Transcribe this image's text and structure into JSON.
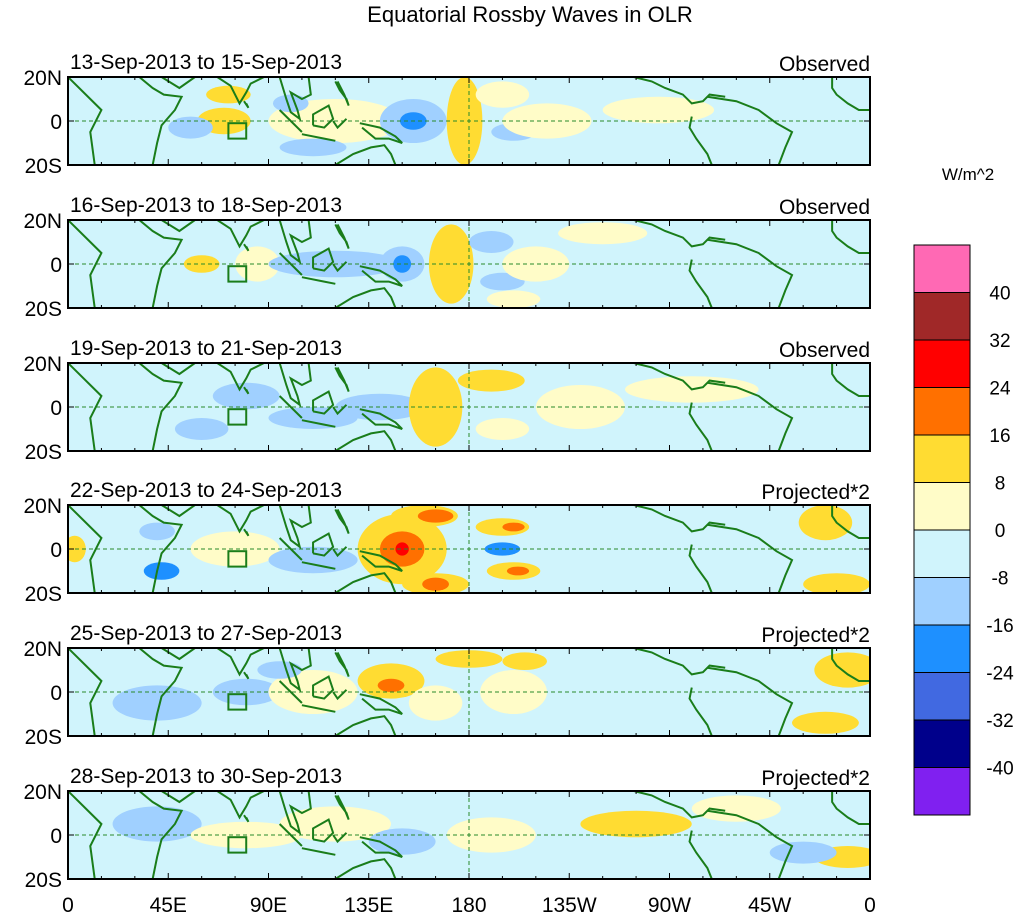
{
  "chart_data": {
    "type": "heatmap",
    "title": "Equatorial Rossby Waves in OLR",
    "colorbar": {
      "units": "W/m^2",
      "levels": [
        "-40",
        "-32",
        "-24",
        "-16",
        "-8",
        "0",
        "8",
        "16",
        "24",
        "32",
        "40"
      ],
      "colors": [
        "#8020f0",
        "#00008b",
        "#4169e1",
        "#1e90ff",
        "#a0d0ff",
        "#d0f4fc",
        "#fffcc8",
        "#ffdc32",
        "#ff7000",
        "#ff0000",
        "#a02828",
        "#ff69b4"
      ]
    },
    "x_ticks": [
      "0",
      "45E",
      "90E",
      "135E",
      "180",
      "135W",
      "90W",
      "45W",
      "0"
    ],
    "y_ticks": [
      "20N",
      "0",
      "20S"
    ],
    "panels": [
      {
        "date": "13-Sep-2013 to 15-Sep-2013",
        "label": "Observed"
      },
      {
        "date": "16-Sep-2013 to 18-Sep-2013",
        "label": "Observed"
      },
      {
        "date": "19-Sep-2013 to 21-Sep-2013",
        "label": "Observed"
      },
      {
        "date": "22-Sep-2013 to 24-Sep-2013",
        "label": "Projected*2"
      },
      {
        "date": "25-Sep-2013 to 27-Sep-2013",
        "label": "Projected*2"
      },
      {
        "date": "28-Sep-2013 to 30-Sep-2013",
        "label": "Projected*2"
      }
    ]
  }
}
